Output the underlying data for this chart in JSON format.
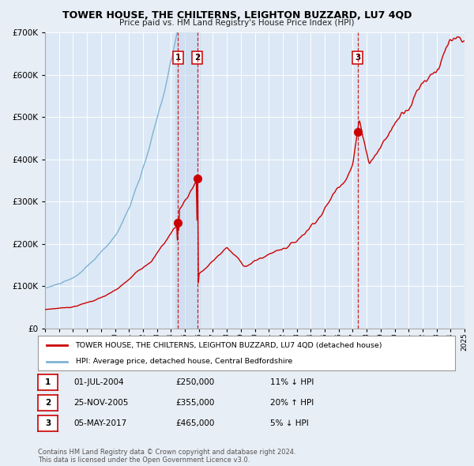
{
  "title": "TOWER HOUSE, THE CHILTERNS, LEIGHTON BUZZARD, LU7 4QD",
  "subtitle": "Price paid vs. HM Land Registry's House Price Index (HPI)",
  "ylim": [
    0,
    700000
  ],
  "yticks": [
    0,
    100000,
    200000,
    300000,
    400000,
    500000,
    600000,
    700000
  ],
  "red_color": "#cc0000",
  "blue_color": "#7fb3d3",
  "bg_color": "#e8eef5",
  "plot_bg": "#dce8f5",
  "grid_color": "#ffffff",
  "legend_label_red": "TOWER HOUSE, THE CHILTERNS, LEIGHTON BUZZARD, LU7 4QD (detached house)",
  "legend_label_blue": "HPI: Average price, detached house, Central Bedfordshire",
  "transactions": [
    {
      "num": 1,
      "date": "01-JUL-2004",
      "price": 250000,
      "hpi_diff": "11% ↓ HPI",
      "x_year": 2004.5
    },
    {
      "num": 2,
      "date": "25-NOV-2005",
      "price": 355000,
      "hpi_diff": "20% ↑ HPI",
      "x_year": 2005.9
    },
    {
      "num": 3,
      "date": "05-MAY-2017",
      "price": 465000,
      "hpi_diff": "5% ↓ HPI",
      "x_year": 2017.35
    }
  ],
  "footer": "Contains HM Land Registry data © Crown copyright and database right 2024.\nThis data is licensed under the Open Government Licence v3.0.",
  "xmin": 1995,
  "xmax": 2025
}
